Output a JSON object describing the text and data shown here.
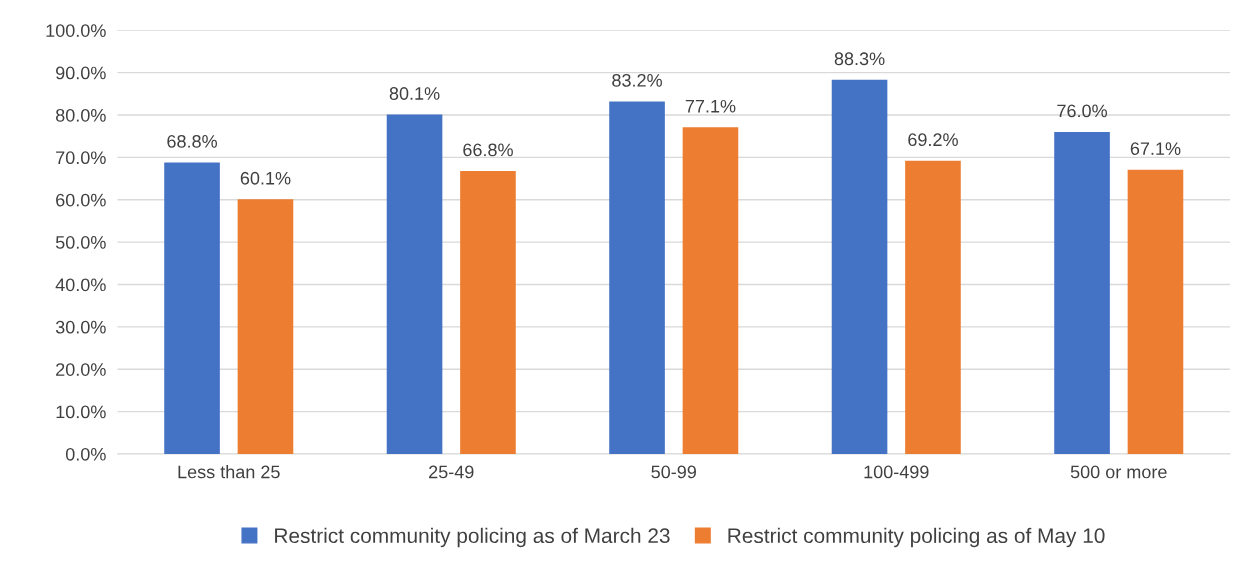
{
  "chart_data": {
    "type": "bar",
    "categories": [
      "Less than 25",
      "25-49",
      "50-99",
      "100-499",
      "500 or more"
    ],
    "series": [
      {
        "name": "Restrict community policing as of March 23",
        "color": "#4472c4",
        "values": [
          68.8,
          80.1,
          83.2,
          88.3,
          76.0
        ],
        "value_labels": [
          "68.8%",
          "80.1%",
          "83.2%",
          "88.3%",
          "76.0%"
        ]
      },
      {
        "name": "Restrict community policing as of May 10",
        "color": "#ed7d31",
        "values": [
          60.1,
          66.8,
          77.1,
          69.2,
          67.1
        ],
        "value_labels": [
          "60.1%",
          "66.8%",
          "77.1%",
          "69.2%",
          "67.1%"
        ]
      }
    ],
    "ylim": [
      0,
      100
    ],
    "yticks": [
      {
        "value": 0,
        "label": "0.0%"
      },
      {
        "value": 10,
        "label": "10.0%"
      },
      {
        "value": 20,
        "label": "20.0%"
      },
      {
        "value": 30,
        "label": "30.0%"
      },
      {
        "value": 40,
        "label": "40.0%"
      },
      {
        "value": 50,
        "label": "50.0%"
      },
      {
        "value": 60,
        "label": "60.0%"
      },
      {
        "value": 70,
        "label": "70.0%"
      },
      {
        "value": 80,
        "label": "80.0%"
      },
      {
        "value": 90,
        "label": "90.0%"
      },
      {
        "value": 100,
        "label": "100.0%"
      }
    ],
    "grid": "y",
    "legend": "bottom"
  }
}
